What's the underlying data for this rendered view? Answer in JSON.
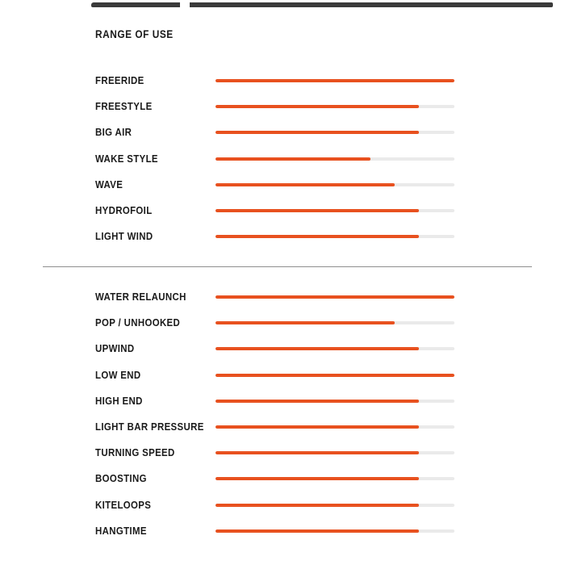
{
  "page_title": "RANGE OF USE",
  "colors": {
    "accent_orange": "#E8511F",
    "track_gray": "#EAEAEA",
    "divider_gray": "#8F8F8F",
    "top_bar_dark": "#3A3A3A",
    "text_black": "#1A1A1A"
  },
  "chart_data": {
    "type": "bar",
    "orientation": "horizontal",
    "title": "RANGE OF USE",
    "value_range": [
      0,
      1
    ],
    "grid": false,
    "legend": false,
    "sections": [
      {
        "name": "discipline-ratings",
        "rows": [
          {
            "label": "FREERIDE",
            "value": 1.0
          },
          {
            "label": "FREESTYLE",
            "value": 0.85
          },
          {
            "label": "BIG AIR",
            "value": 0.85
          },
          {
            "label": "WAKE STYLE",
            "value": 0.65
          },
          {
            "label": "WAVE",
            "value": 0.75
          },
          {
            "label": "HYDROFOIL",
            "value": 0.85
          },
          {
            "label": "LIGHT WIND",
            "value": 0.85
          }
        ]
      },
      {
        "name": "performance-ratings",
        "rows": [
          {
            "label": "WATER RELAUNCH",
            "value": 1.0
          },
          {
            "label": "POP / UNHOOKED",
            "value": 0.75
          },
          {
            "label": "UPWIND",
            "value": 0.85
          },
          {
            "label": "LOW END",
            "value": 1.0
          },
          {
            "label": "HIGH END",
            "value": 0.85
          },
          {
            "label": "LIGHT BAR PRESSURE",
            "value": 0.85
          },
          {
            "label": "TURNING SPEED",
            "value": 0.85
          },
          {
            "label": "BOOSTING",
            "value": 0.85
          },
          {
            "label": "KITELOOPS",
            "value": 0.85
          },
          {
            "label": "HANGTIME",
            "value": 0.85
          }
        ]
      }
    ]
  }
}
